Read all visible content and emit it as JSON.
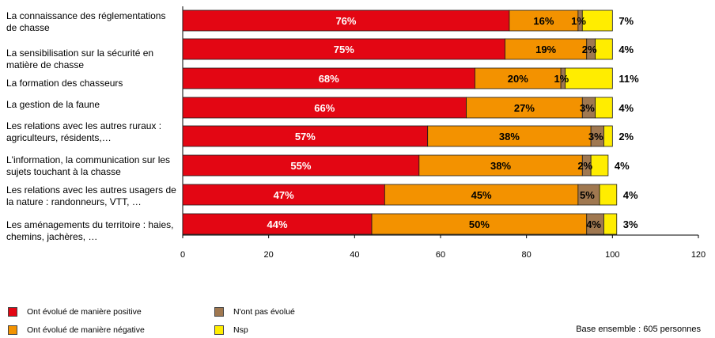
{
  "chart_data": {
    "type": "bar",
    "orientation": "horizontal",
    "stacked": true,
    "categories": [
      "La connaissance des réglementations de chasse",
      "La sensibilisation sur la sécurité en matière de chasse",
      "La formation des chasseurs",
      "La gestion de la faune",
      "Les relations avec les autres ruraux : agriculteurs, résidents,…",
      "L'information, la communication sur les sujets touchant à la chasse",
      "Les relations avec les autres usagers de la nature : randonneurs, VTT, …",
      "Les aménagements du territoire : haies, chemins, jachères, …"
    ],
    "series": [
      {
        "name": "Ont évolué de manière positive",
        "color": "#e30613",
        "values": [
          76,
          75,
          68,
          66,
          57,
          55,
          47,
          44
        ]
      },
      {
        "name": "Ont évolué de manière négative",
        "color": "#f39200",
        "values": [
          16,
          19,
          20,
          27,
          38,
          38,
          45,
          50
        ]
      },
      {
        "name": "N'ont pas évolué",
        "color": "#a07850",
        "values": [
          1,
          2,
          1,
          3,
          3,
          2,
          5,
          4
        ]
      },
      {
        "name": "Nsp",
        "color": "#ffed00",
        "values": [
          7,
          4,
          11,
          4,
          2,
          4,
          4,
          3
        ]
      }
    ],
    "value_labels": [
      [
        "76%",
        "16%",
        "1%",
        "7%"
      ],
      [
        "75%",
        "19%",
        "2%",
        "4%"
      ],
      [
        "68%",
        "20%",
        "1%",
        "11%"
      ],
      [
        "66%",
        "27%",
        "3%",
        "4%"
      ],
      [
        "57%",
        "38%",
        "3%",
        "2%"
      ],
      [
        "55%",
        "38%",
        "2%",
        "4%"
      ],
      [
        "47%",
        "45%",
        "5%",
        "4%"
      ],
      [
        "44%",
        "50%",
        "4%",
        "3%"
      ]
    ],
    "xlim": [
      0,
      120
    ],
    "xticks": [
      "0",
      "20",
      "40",
      "60",
      "80",
      "100",
      "120"
    ],
    "legend_position": "bottom-left",
    "grid": false
  },
  "legend": [
    {
      "label": "Ont évolué de manière positive",
      "color": "#e30613"
    },
    {
      "label": "N'ont pas évolué",
      "color": "#a07850"
    },
    {
      "label": "Ont évolué de manière négative",
      "color": "#f39200"
    },
    {
      "label": "Nsp",
      "color": "#ffed00"
    }
  ],
  "footnote": "Base ensemble : 605 personnes"
}
